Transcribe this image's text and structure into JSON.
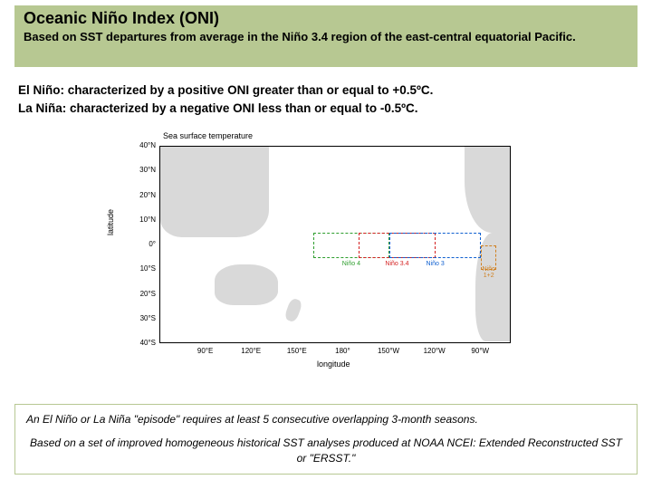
{
  "header": {
    "title": "Oceanic Niño Index (ONI)",
    "subtitle": "Based on SST departures from average in the Niño 3.4 region of the east-central equatorial Pacific."
  },
  "body": {
    "line1": "El Niño: characterized by a positive ONI greater than or equal to +0.5ºC.",
    "line2": "La Niña: characterized by a negative ONI less than or equal to -0.5ºC."
  },
  "map": {
    "title": "Sea surface temperature",
    "ylabel": "latitude",
    "xlabel": "longitude",
    "xlim": [
      60,
      290
    ],
    "ylim": [
      -40,
      40
    ],
    "yticks": [
      {
        "label": "40°N",
        "val": 40
      },
      {
        "label": "30°N",
        "val": 30
      },
      {
        "label": "20°N",
        "val": 20
      },
      {
        "label": "10°N",
        "val": 10
      },
      {
        "label": "0°",
        "val": 0
      },
      {
        "label": "10°S",
        "val": -10
      },
      {
        "label": "20°S",
        "val": -20
      },
      {
        "label": "30°S",
        "val": -30
      },
      {
        "label": "40°S",
        "val": -40
      }
    ],
    "xticks": [
      {
        "label": "90°E",
        "val": 90
      },
      {
        "label": "120°E",
        "val": 120
      },
      {
        "label": "150°E",
        "val": 150
      },
      {
        "label": "180°",
        "val": 180
      },
      {
        "label": "150°W",
        "val": 210
      },
      {
        "label": "120°W",
        "val": 240
      },
      {
        "label": "90°W",
        "val": 270
      }
    ],
    "nino_regions": [
      {
        "name": "Niño 4",
        "lon": [
          160,
          210
        ],
        "lat": [
          -5,
          5
        ],
        "color": "#2e9e2e"
      },
      {
        "name": "Niño 3.4",
        "lon": [
          190,
          240
        ],
        "lat": [
          -5,
          5
        ],
        "color": "#d42020"
      },
      {
        "name": "Niño 3",
        "lon": [
          210,
          270
        ],
        "lat": [
          -5,
          5
        ],
        "color": "#1060d0"
      },
      {
        "name": "Niño 1+2",
        "lon": [
          270,
          280
        ],
        "lat": [
          -10,
          0
        ],
        "color": "#d08020"
      }
    ],
    "land_color": "#d9d9d9",
    "ocean_color": "#ffffff",
    "border_color": "#000000"
  },
  "footer": {
    "line1": "An El Niño or La Niña \"episode\" requires at least 5 consecutive overlapping 3-month seasons.",
    "line2": "Based on a set of improved homogeneous historical SST analyses produced at NOAA NCEI: Extended Reconstructed SST or \"ERSST.\""
  }
}
